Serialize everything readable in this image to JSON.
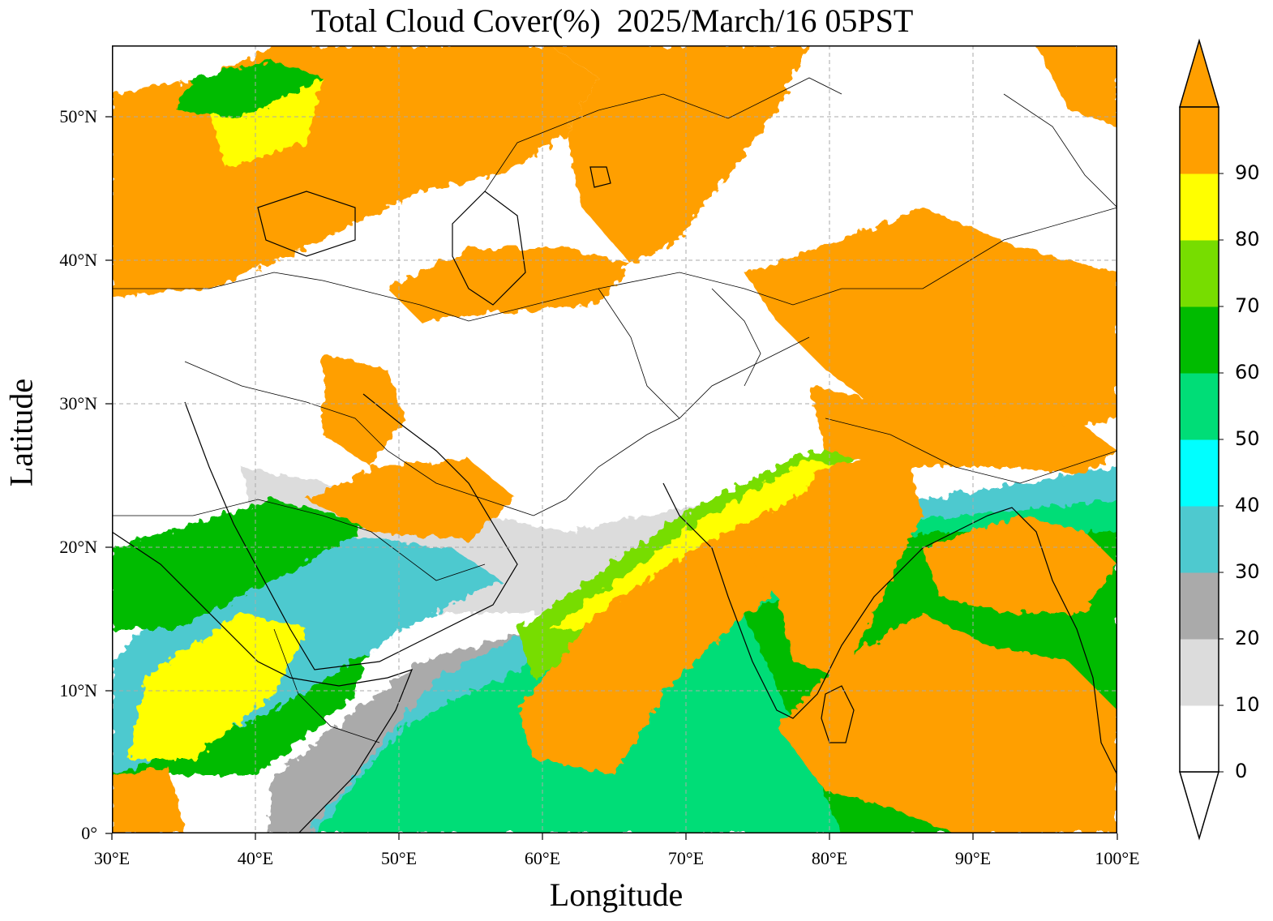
{
  "title": "Total Cloud Cover(%)  2025/March/16 05PST",
  "axes": {
    "xlabel": "Longitude",
    "ylabel": "Latitude",
    "x_ticks": [
      "30°E",
      "40°E",
      "50°E",
      "60°E",
      "70°E",
      "80°E",
      "90°E",
      "100°E"
    ],
    "y_ticks": [
      "50°N",
      "40°N",
      "30°N",
      "20°N",
      "10°N",
      "0°"
    ]
  },
  "colorbar": {
    "labels": [
      "0",
      "10",
      "20",
      "30",
      "40",
      "50",
      "60",
      "70",
      "80",
      "90"
    ],
    "colors": [
      "#ffffff",
      "#dcdcdc",
      "#aaaaaa",
      "#4ec9cf",
      "#00ffff",
      "#00dd77",
      "#00bb00",
      "#77dd00",
      "#ffff00",
      "#ff9f00"
    ]
  },
  "chart_data": {
    "type": "heatmap",
    "title": "Total Cloud Cover(%)  2025/March/16 05PST",
    "xlabel": "Longitude",
    "ylabel": "Latitude",
    "xlim": [
      30,
      100
    ],
    "ylim": [
      0,
      55
    ],
    "variable": "Total Cloud Cover(%)",
    "levels": [
      0,
      10,
      20,
      30,
      40,
      50,
      60,
      70,
      80,
      90
    ],
    "extend": "both",
    "grid": true
  },
  "colors": {
    "orange": "#ff9f00",
    "yellow": "#ffff00",
    "lime": "#77dd00",
    "green": "#00bb00",
    "teal_green": "#00dd77",
    "cyan": "#00ffff",
    "teal": "#4ec9cf",
    "gray": "#aaaaaa",
    "light_gray": "#dcdcdc"
  }
}
